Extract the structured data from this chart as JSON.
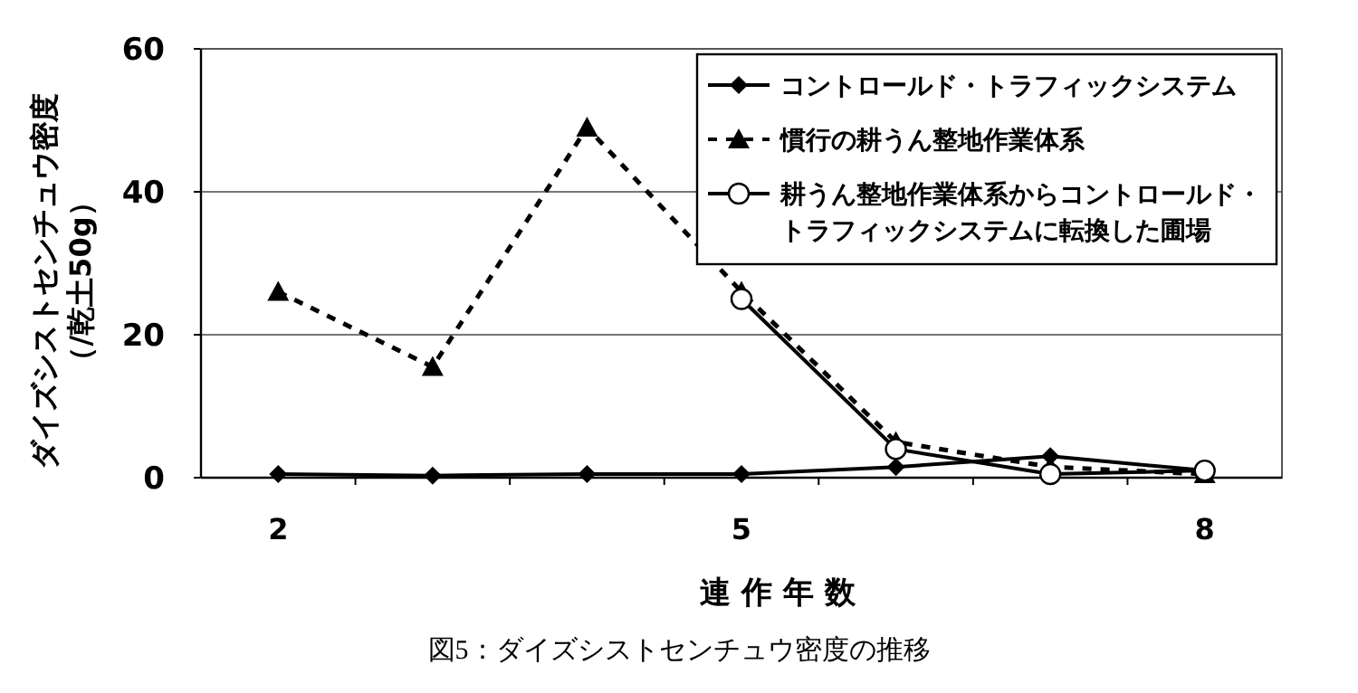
{
  "chart_data": {
    "type": "line",
    "xlabel": "連 作 年 数",
    "ylabel": "ダイズシストセンチュウ密度（/乾土50g）",
    "annotations": [
      "図5：ダイズシストセンチュウ密度の推移"
    ],
    "x": [
      2,
      3,
      4,
      5,
      6,
      7,
      8
    ],
    "xlim": [
      1.5,
      8.5
    ],
    "xticks": [
      2,
      5,
      8,
      {
        "value": 2.5,
        "label": null
      },
      {
        "value": 3.5,
        "label": null
      },
      {
        "value": 4.5,
        "label": null
      },
      {
        "value": 5.5,
        "label": null
      },
      {
        "value": 6.5,
        "label": null
      },
      {
        "value": 7.5,
        "label": null
      }
    ],
    "ylim": [
      0,
      60
    ],
    "yticks": [
      0,
      20,
      40,
      60
    ],
    "grid": "y",
    "legend": "top right",
    "series": [
      {
        "name": "コントロールド・トラフィックシステム",
        "color": "#000000",
        "marker": "diamond",
        "line_style": "solid",
        "values": [
          0.5,
          0.3,
          0.5,
          0.5,
          1.5,
          3,
          1
        ]
      },
      {
        "name": "慣行の耕うん整地作業体系",
        "color": "#000000",
        "marker": "triangle",
        "line_style": "dashed",
        "values": [
          26,
          15.5,
          49,
          26,
          5,
          1.5,
          0.5
        ]
      },
      {
        "name": "耕うん整地作業体系からコントロールド・トラフィックシステムに転換した圃場",
        "color": "#000000",
        "marker": "circle",
        "line_style": "solid",
        "values": [
          null,
          null,
          null,
          25,
          4,
          0.5,
          1
        ]
      }
    ]
  }
}
